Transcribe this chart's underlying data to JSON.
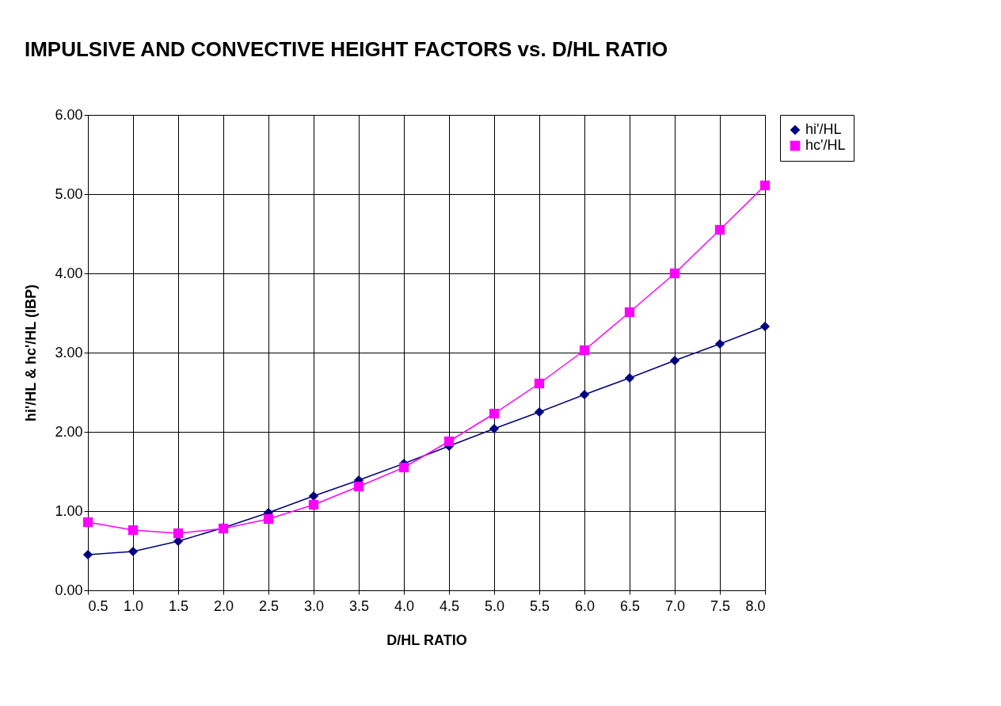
{
  "chart_data": {
    "type": "line",
    "title": "IMPULSIVE AND CONVECTIVE HEIGHT FACTORS vs. D/HL RATIO",
    "xlabel": "D/HL  RATIO",
    "ylabel": "hi'/HL  &  hc'/HL  (IBP)",
    "x": [
      0.5,
      1.0,
      1.5,
      2.0,
      2.5,
      3.0,
      3.5,
      4.0,
      4.5,
      5.0,
      5.5,
      6.0,
      6.5,
      7.0,
      7.5,
      8.0
    ],
    "series": [
      {
        "name": "hi'/HL",
        "color": "#000080",
        "marker": "diamond",
        "values": [
          0.45,
          0.49,
          0.62,
          0.79,
          0.98,
          1.19,
          1.39,
          1.6,
          1.82,
          2.04,
          2.25,
          2.47,
          2.68,
          2.9,
          3.11,
          3.33
        ]
      },
      {
        "name": "hc'/HL",
        "color": "#ff00ff",
        "marker": "square",
        "values": [
          0.86,
          0.76,
          0.72,
          0.78,
          0.9,
          1.08,
          1.31,
          1.55,
          1.88,
          2.23,
          2.61,
          3.03,
          3.51,
          4.0,
          4.55,
          5.11
        ]
      }
    ],
    "xlim": [
      0.5,
      8.0
    ],
    "xticks": [
      {
        "value": 0.5,
        "label": "0.5"
      },
      {
        "value": 1,
        "label": "1.0"
      },
      {
        "value": 1.5,
        "label": "1.5"
      },
      {
        "value": 2,
        "label": "2.0"
      },
      {
        "value": 2.5,
        "label": "2.5"
      },
      {
        "value": 3,
        "label": "3.0"
      },
      {
        "value": 3.5,
        "label": "3.5"
      },
      {
        "value": 4,
        "label": "4.0"
      },
      {
        "value": 4.5,
        "label": "4.5"
      },
      {
        "value": 5,
        "label": "5.0"
      },
      {
        "value": 5.5,
        "label": "5.5"
      },
      {
        "value": 6,
        "label": "6.0"
      },
      {
        "value": 6.5,
        "label": "6.5"
      },
      {
        "value": 7,
        "label": "7.0"
      },
      {
        "value": 7.5,
        "label": "7.5"
      },
      {
        "value": 8,
        "label": "8.0"
      }
    ],
    "ylim": [
      0,
      6
    ],
    "yticks": [
      {
        "value": 0,
        "label": "0.00"
      },
      {
        "value": 1,
        "label": "1.00"
      },
      {
        "value": 2,
        "label": "2.00"
      },
      {
        "value": 3,
        "label": "3.00"
      },
      {
        "value": 4,
        "label": "4.00"
      },
      {
        "value": 5,
        "label": "5.00"
      },
      {
        "value": 6,
        "label": "6.00"
      }
    ],
    "grid": true,
    "legend": "right",
    "line_style": "solid"
  }
}
